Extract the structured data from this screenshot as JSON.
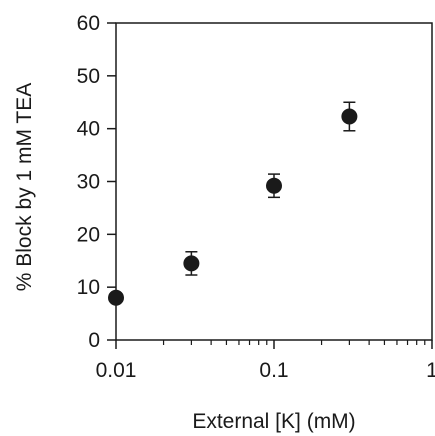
{
  "chart_data": {
    "type": "scatter",
    "title": "",
    "xlabel": "External [K] (mM)",
    "ylabel": "% Block by 1 mM TEA",
    "x_scale": "log",
    "xlim": [
      0.01,
      1
    ],
    "ylim": [
      0,
      60
    ],
    "x_ticks": [
      0.01,
      0.1,
      1
    ],
    "x_tick_labels": [
      "0.01",
      "0.1",
      "1"
    ],
    "y_ticks": [
      0,
      10,
      20,
      30,
      40,
      50,
      60
    ],
    "y_tick_labels": [
      "0",
      "10",
      "20",
      "30",
      "40",
      "50",
      "60"
    ],
    "grid": false,
    "legend": "none",
    "marker_color": "#1a1a1a",
    "series": [
      {
        "points": [
          {
            "x": 0.01,
            "y": 8,
            "err": 0.6
          },
          {
            "x": 0.03,
            "y": 14.5,
            "err": 2.2
          },
          {
            "x": 0.1,
            "y": 29.2,
            "err": 2.2
          },
          {
            "x": 0.3,
            "y": 42.3,
            "err": 2.7
          }
        ]
      }
    ]
  }
}
